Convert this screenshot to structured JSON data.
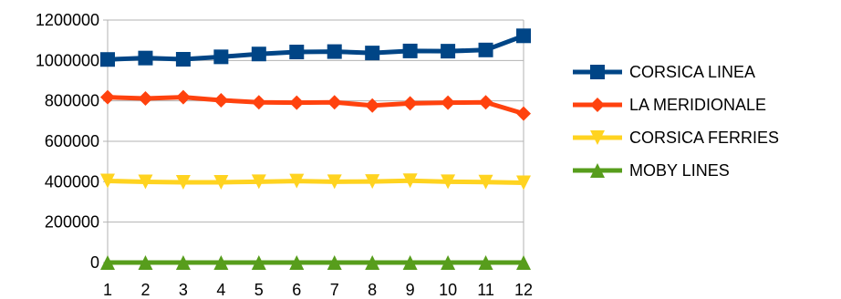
{
  "chart_data": {
    "type": "line",
    "title": "",
    "xlabel": "",
    "ylabel": "",
    "categories": [
      "1",
      "2",
      "3",
      "4",
      "5",
      "6",
      "7",
      "8",
      "9",
      "10",
      "11",
      "12"
    ],
    "ylim": [
      0,
      1200000
    ],
    "yticks": [
      "0",
      "200000",
      "400000",
      "600000",
      "800000",
      "1000000",
      "1200000"
    ],
    "grid": "horizontal",
    "legend_position": "right",
    "series": [
      {
        "name": "CORSICA LINEA",
        "color": "#004586",
        "marker": "square",
        "values": [
          1005000,
          1012000,
          1006000,
          1018000,
          1032000,
          1042000,
          1044000,
          1037000,
          1047000,
          1046000,
          1052000,
          1122000
        ]
      },
      {
        "name": "LA MERIDIONALE",
        "color": "#ff420e",
        "marker": "diamond",
        "values": [
          818000,
          812000,
          818000,
          803000,
          793000,
          791000,
          793000,
          777000,
          788000,
          791000,
          793000,
          737000
        ]
      },
      {
        "name": "CORSICA FERRIES",
        "color": "#ffd320",
        "marker": "triangle-down",
        "values": [
          404000,
          399000,
          397000,
          397000,
          400000,
          403000,
          400000,
          401000,
          405000,
          400000,
          398000,
          395000
        ]
      },
      {
        "name": "MOBY LINES",
        "color": "#579d1c",
        "marker": "triangle-up",
        "values": [
          0,
          0,
          0,
          0,
          0,
          0,
          0,
          0,
          0,
          0,
          0,
          0
        ]
      }
    ]
  }
}
